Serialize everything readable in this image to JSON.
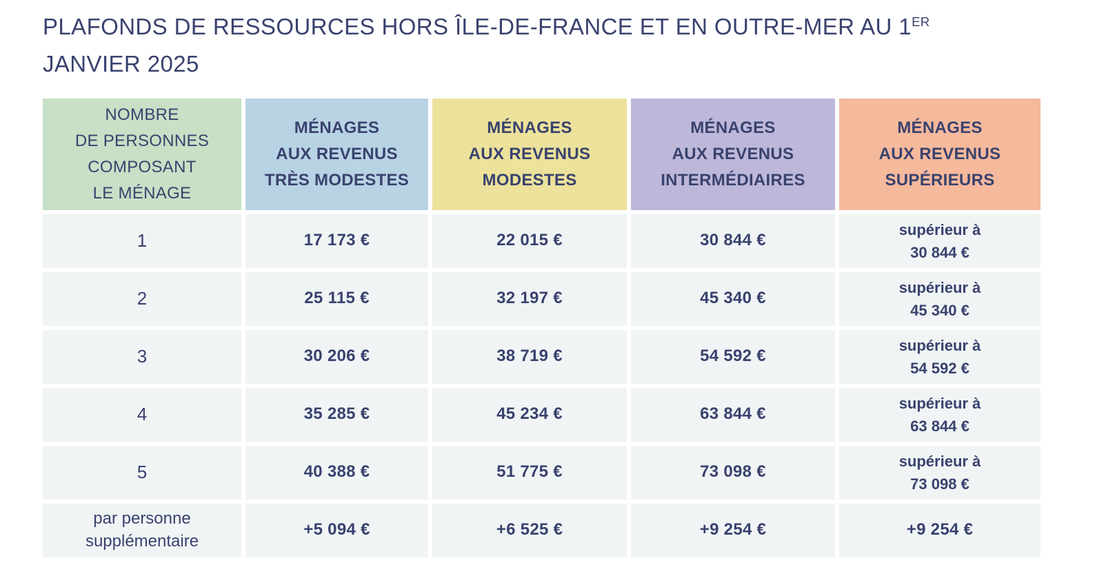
{
  "title": {
    "text": "PLAFONDS DE RESSOURCES HORS ÎLE-DE-FRANCE ET EN OUTRE-MER AU 1",
    "superscript": "ER",
    "line2": "JANVIER 2025"
  },
  "colors": {
    "header_persons": "#c7e0c6",
    "header_tres_modestes": "#b8d3e4",
    "header_modestes": "#ece29b",
    "header_intermediaires": "#bdb8d9",
    "header_superieurs": "#f5b99c",
    "cell_background": "#f0f4f5",
    "text": "#39426e"
  },
  "table": {
    "headers": [
      {
        "label": "NOMBRE\nDE PERSONNES\nCOMPOSANT\nLE MÉNAGE",
        "color": "#c7e0c6"
      },
      {
        "label": "MÉNAGES\nAUX REVENUS\nTRÈS MODESTES",
        "color": "#b8d3e4"
      },
      {
        "label": "MÉNAGES\nAUX REVENUS\nMODESTES",
        "color": "#ece29b"
      },
      {
        "label": "MÉNAGES\nAUX REVENUS\nINTERMÉDIAIRES",
        "color": "#bdb8d9"
      },
      {
        "label": "MÉNAGES\nAUX REVENUS\nSUPÉRIEURS",
        "color": "#f5b99c"
      }
    ],
    "rows": [
      {
        "cells": [
          "1",
          "17 173 €",
          "22 015 €",
          "30 844 €",
          "supérieur à\n30 844 €"
        ]
      },
      {
        "cells": [
          "2",
          "25 115 €",
          "32 197 €",
          "45 340 €",
          "supérieur à\n45 340 €"
        ]
      },
      {
        "cells": [
          "3",
          "30 206 €",
          "38 719 €",
          "54 592 €",
          "supérieur à\n54 592 €"
        ]
      },
      {
        "cells": [
          "4",
          "35 285 €",
          "45 234 €",
          "63 844 €",
          "supérieur à\n63 844 €"
        ]
      },
      {
        "cells": [
          "5",
          "40 388 €",
          "51 775 €",
          "73 098 €",
          "supérieur à\n73 098 €"
        ]
      },
      {
        "cells": [
          "par personne\nsupplémentaire",
          "+5 094 €",
          "+6 525 €",
          "+9 254 €",
          "+9 254 €"
        ]
      }
    ]
  }
}
